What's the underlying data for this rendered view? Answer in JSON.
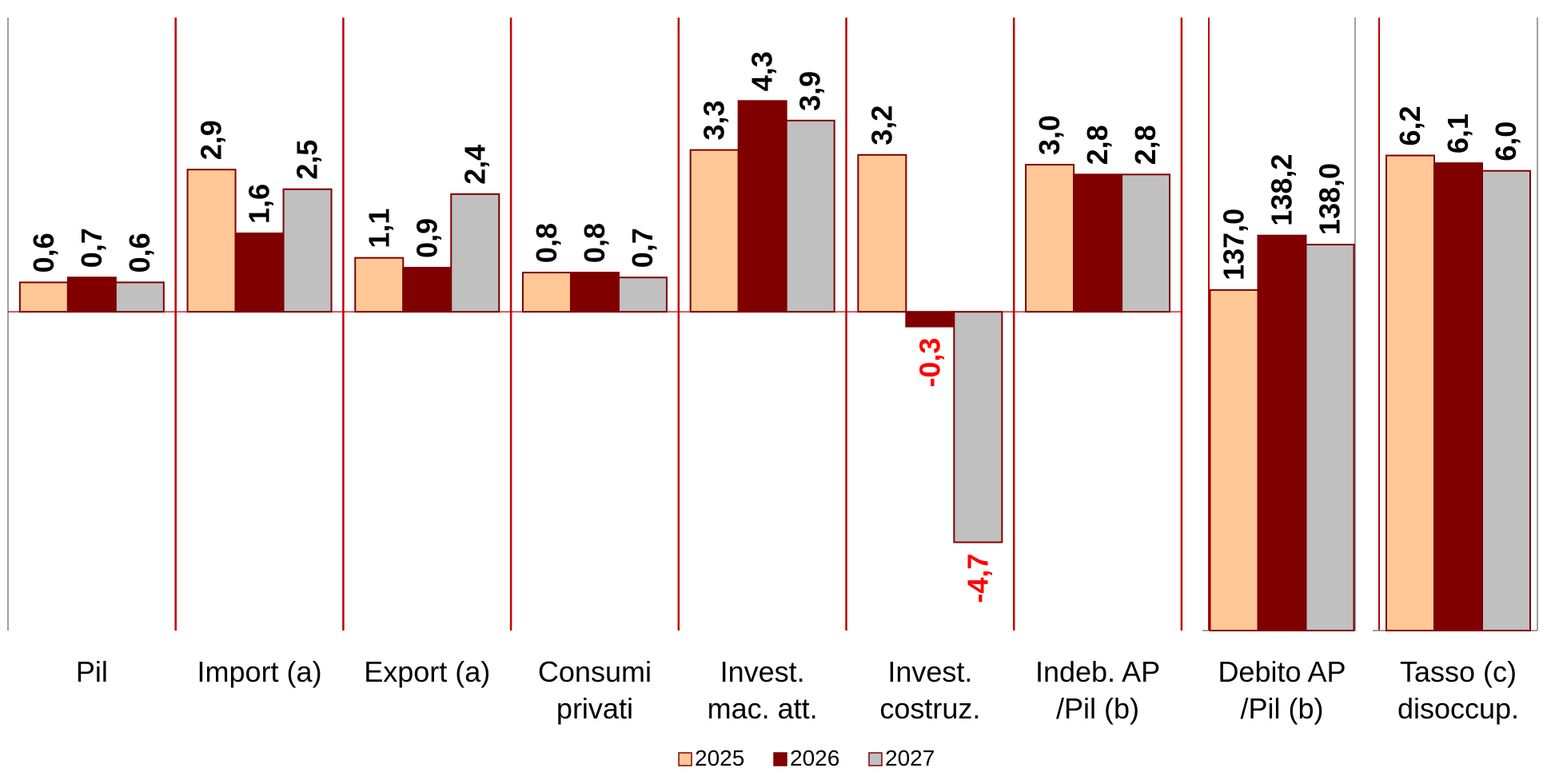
{
  "chart_data": {
    "type": "bar",
    "panels": [
      {
        "categories": [
          [
            "Pil"
          ],
          [
            "Import (a)"
          ],
          [
            "Export (a)"
          ],
          [
            "Consumi",
            "privati"
          ],
          [
            "Invest.",
            "mac. att."
          ],
          [
            "Invest.",
            "costruz."
          ],
          [
            "Indeb. AP",
            "/Pil (b)"
          ]
        ],
        "ylim": [
          -6.5,
          6.0
        ],
        "series": [
          {
            "name": "2025",
            "values": [
              0.6,
              2.9,
              1.1,
              0.8,
              3.3,
              3.2,
              3.0
            ]
          },
          {
            "name": "2026",
            "values": [
              0.7,
              1.6,
              0.9,
              0.8,
              4.3,
              -0.3,
              2.8
            ]
          },
          {
            "name": "2027",
            "values": [
              0.6,
              2.5,
              2.4,
              0.7,
              3.9,
              -4.7,
              2.8
            ]
          }
        ],
        "value_labels": [
          [
            "0,6",
            "2,9",
            "1,1",
            "0,8",
            "3,3",
            "3,2",
            "3,0"
          ],
          [
            "0,7",
            "1,6",
            "0,9",
            "0,8",
            "4,3",
            "-0,3",
            "2,8"
          ],
          [
            "0,6",
            "2,5",
            "2,4",
            "0,7",
            "3,9",
            "-4,7",
            "2,8"
          ]
        ]
      },
      {
        "categories": [
          [
            "Debito AP",
            "/Pil (b)"
          ]
        ],
        "ylim": [
          129.5,
          143.0
        ],
        "series": [
          {
            "name": "2025",
            "values": [
              137.0
            ]
          },
          {
            "name": "2026",
            "values": [
              138.2
            ]
          },
          {
            "name": "2027",
            "values": [
              138.0
            ]
          }
        ],
        "value_labels": [
          [
            "137,0"
          ],
          [
            "138,2"
          ],
          [
            "138,0"
          ]
        ]
      },
      {
        "categories": [
          [
            "Tasso (c)",
            "disoccup."
          ]
        ],
        "ylim": [
          0,
          8.0
        ],
        "series": [
          {
            "name": "2025",
            "values": [
              6.2
            ]
          },
          {
            "name": "2026",
            "values": [
              6.1
            ]
          },
          {
            "name": "2027",
            "values": [
              6.0
            ]
          }
        ],
        "value_labels": [
          [
            "6,2"
          ],
          [
            "6,1"
          ],
          [
            "6,0"
          ]
        ]
      }
    ],
    "legend": {
      "position": "bottom-center",
      "entries": [
        "2025",
        "2026",
        "2027"
      ]
    },
    "colors": {
      "2025": "#FFC896",
      "2026": "#800000",
      "2027": "#C0C0C0",
      "bar_border": "#800000",
      "separator": "#C00000",
      "negative_label": "#FF0000",
      "positive_label": "#000000"
    },
    "grid": false
  }
}
